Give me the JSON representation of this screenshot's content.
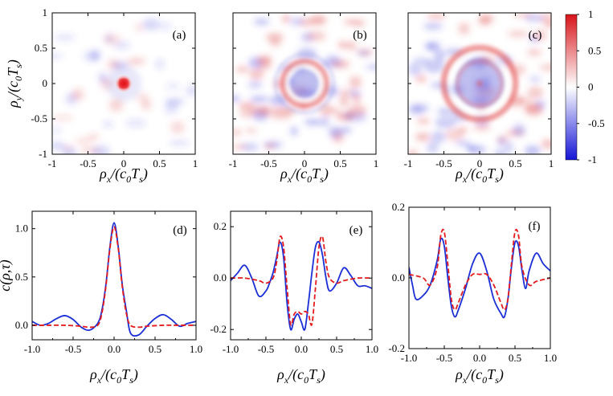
{
  "chart_data": [
    {
      "type": "heatmap",
      "panel_label": "(a)",
      "description": "sharp central peak",
      "pattern": "peak",
      "xlim": [
        -1,
        1
      ],
      "ylim": [
        -1,
        1
      ],
      "x_ticks": [
        "-1",
        "-0.5",
        "0",
        "0.5",
        "1"
      ],
      "y_ticks": [
        "1",
        "0.5",
        "0",
        "-0.5",
        "-1"
      ],
      "xlabel": "ρx/(c0Ts)",
      "ylabel": "ρy/(c0Ts)"
    },
    {
      "type": "heatmap",
      "panel_label": "(b)",
      "pattern": "ring",
      "ring_radius": 0.3,
      "xlim": [
        -1,
        1
      ],
      "ylim": [
        -1,
        1
      ],
      "x_ticks": [
        "-1",
        "-0.5",
        "0",
        "0.5",
        "1"
      ],
      "xlabel": "ρx/(c0Ts)"
    },
    {
      "type": "heatmap",
      "panel_label": "(c)",
      "pattern": "ring",
      "ring_radius": 0.5,
      "xlim": [
        -1,
        1
      ],
      "ylim": [
        -1,
        1
      ],
      "x_ticks": [
        "-1",
        "-0.5",
        "0",
        "0.5",
        "1"
      ],
      "xlabel": "ρx/(c0Ts)"
    },
    {
      "type": "line",
      "panel_label": "(d)",
      "xlim": [
        -1,
        1
      ],
      "ylim": [
        -0.15,
        1.18
      ],
      "x_ticks": [
        "-1.0",
        "-0.5",
        "0.0",
        "0.5",
        "1.0"
      ],
      "y_ticks": [
        "1.0",
        "0.5",
        "0.0"
      ],
      "y_tick_values": [
        1.0,
        0.5,
        0.0
      ],
      "xlabel": "ρx/(c0Ts)",
      "ylabel": "c(ρ,τ)",
      "series": [
        {
          "style": "solid",
          "color": "#1a2fd6",
          "x": [
            -1.0,
            -0.9,
            -0.8,
            -0.7,
            -0.6,
            -0.5,
            -0.4,
            -0.3,
            -0.2,
            -0.15,
            -0.1,
            -0.05,
            0.0,
            0.05,
            0.1,
            0.15,
            0.2,
            0.3,
            0.4,
            0.5,
            0.6,
            0.7,
            0.8,
            0.9,
            1.0
          ],
          "y": [
            0.04,
            0.0,
            0.02,
            0.07,
            0.1,
            0.06,
            -0.02,
            -0.05,
            0.02,
            0.15,
            0.42,
            0.82,
            1.06,
            0.82,
            0.42,
            0.15,
            -0.08,
            -0.1,
            -0.01,
            0.07,
            0.11,
            0.06,
            -0.01,
            0.02,
            0.04
          ]
        },
        {
          "style": "dashed",
          "color": "#e41a1c",
          "x": [
            -1.0,
            -0.8,
            -0.6,
            -0.4,
            -0.3,
            -0.2,
            -0.15,
            -0.1,
            -0.05,
            0.0,
            0.05,
            0.1,
            0.15,
            0.2,
            0.3,
            0.4,
            0.6,
            0.8,
            1.0
          ],
          "y": [
            0.0,
            0.0,
            0.0,
            -0.01,
            -0.02,
            0.0,
            0.12,
            0.4,
            0.8,
            1.02,
            0.8,
            0.4,
            0.12,
            0.0,
            -0.02,
            -0.01,
            0.0,
            0.0,
            0.0
          ]
        }
      ]
    },
    {
      "type": "line",
      "panel_label": "(e)",
      "xlim": [
        -1,
        1
      ],
      "ylim": [
        -0.24,
        0.26
      ],
      "x_ticks": [
        "-1.0",
        "-0.5",
        "0.0",
        "0.5",
        "1.0"
      ],
      "y_ticks": [
        "0.2",
        "0.0",
        "-0.2"
      ],
      "y_tick_values": [
        0.2,
        0.0,
        -0.2
      ],
      "xlabel": "ρx/(c0Ts)",
      "series": [
        {
          "style": "solid",
          "color": "#1a2fd6",
          "x": [
            -1.0,
            -0.9,
            -0.8,
            -0.7,
            -0.6,
            -0.5,
            -0.45,
            -0.4,
            -0.35,
            -0.3,
            -0.25,
            -0.2,
            -0.15,
            -0.1,
            -0.05,
            0.0,
            0.05,
            0.1,
            0.15,
            0.2,
            0.25,
            0.3,
            0.35,
            0.4,
            0.5,
            0.6,
            0.7,
            0.8,
            0.9,
            1.0
          ],
          "y": [
            -0.01,
            0.02,
            0.05,
            0.0,
            -0.07,
            -0.05,
            -0.02,
            0.02,
            0.08,
            0.14,
            0.08,
            -0.1,
            -0.2,
            -0.16,
            -0.14,
            -0.17,
            -0.2,
            -0.1,
            0.02,
            0.12,
            0.14,
            0.09,
            0.0,
            -0.05,
            -0.02,
            0.04,
            0.01,
            -0.03,
            -0.03,
            -0.04
          ]
        },
        {
          "style": "dashed",
          "color": "#e41a1c",
          "x": [
            -1.0,
            -0.8,
            -0.6,
            -0.5,
            -0.4,
            -0.35,
            -0.3,
            -0.25,
            -0.2,
            -0.15,
            -0.1,
            -0.05,
            0.0,
            0.05,
            0.1,
            0.15,
            0.2,
            0.25,
            0.3,
            0.35,
            0.4,
            0.5,
            0.6,
            0.8,
            1.0
          ],
          "y": [
            0.0,
            0.0,
            -0.01,
            -0.02,
            0.0,
            0.06,
            0.16,
            0.12,
            -0.04,
            -0.18,
            -0.14,
            -0.13,
            -0.14,
            -0.13,
            -0.14,
            -0.18,
            -0.04,
            0.12,
            0.16,
            0.06,
            0.0,
            -0.02,
            -0.01,
            0.0,
            0.0
          ]
        }
      ]
    },
    {
      "type": "line",
      "panel_label": "(f)",
      "xlim": [
        -1,
        1
      ],
      "ylim": [
        -0.2,
        0.2
      ],
      "x_ticks": [
        "-1.0",
        "-0.5",
        "0.0",
        "0.5",
        "1.0"
      ],
      "y_ticks": [
        "0.2",
        "0.0",
        "-0.2"
      ],
      "y_tick_values": [
        0.2,
        0.0,
        -0.2
      ],
      "xlabel": "ρx/(c0Ts)",
      "series": [
        {
          "style": "solid",
          "color": "#1a2fd6",
          "x": [
            -1.0,
            -0.95,
            -0.9,
            -0.8,
            -0.7,
            -0.6,
            -0.55,
            -0.5,
            -0.45,
            -0.4,
            -0.35,
            -0.3,
            -0.2,
            -0.1,
            0.0,
            0.1,
            0.2,
            0.3,
            0.35,
            0.4,
            0.45,
            0.5,
            0.55,
            0.6,
            0.65,
            0.7,
            0.8,
            0.9,
            1.0
          ],
          "y": [
            0.03,
            -0.02,
            -0.06,
            -0.05,
            -0.02,
            0.05,
            0.11,
            0.09,
            0.0,
            -0.08,
            -0.11,
            -0.09,
            -0.03,
            0.04,
            0.07,
            0.02,
            -0.06,
            -0.1,
            -0.11,
            -0.06,
            0.03,
            0.1,
            0.09,
            0.02,
            -0.03,
            0.02,
            0.07,
            0.04,
            0.02
          ]
        },
        {
          "style": "dashed",
          "color": "#e41a1c",
          "x": [
            -1.0,
            -0.8,
            -0.7,
            -0.6,
            -0.55,
            -0.5,
            -0.45,
            -0.4,
            -0.35,
            -0.3,
            -0.2,
            -0.1,
            0.0,
            0.1,
            0.2,
            0.3,
            0.35,
            0.4,
            0.45,
            0.5,
            0.55,
            0.6,
            0.7,
            0.8,
            1.0
          ],
          "y": [
            0.01,
            0.0,
            -0.02,
            0.03,
            0.12,
            0.13,
            0.04,
            -0.06,
            -0.09,
            -0.07,
            -0.02,
            0.01,
            0.01,
            0.01,
            -0.02,
            -0.07,
            -0.09,
            -0.06,
            0.04,
            0.13,
            0.12,
            0.03,
            -0.02,
            -0.01,
            0.0
          ]
        }
      ]
    }
  ],
  "colorbar": {
    "ticks": [
      "1",
      "0.5",
      "0",
      "-0.5",
      "-1"
    ],
    "max_color": "#d7141a",
    "mid_color": "#ffffff",
    "min_color": "#1414d7"
  }
}
